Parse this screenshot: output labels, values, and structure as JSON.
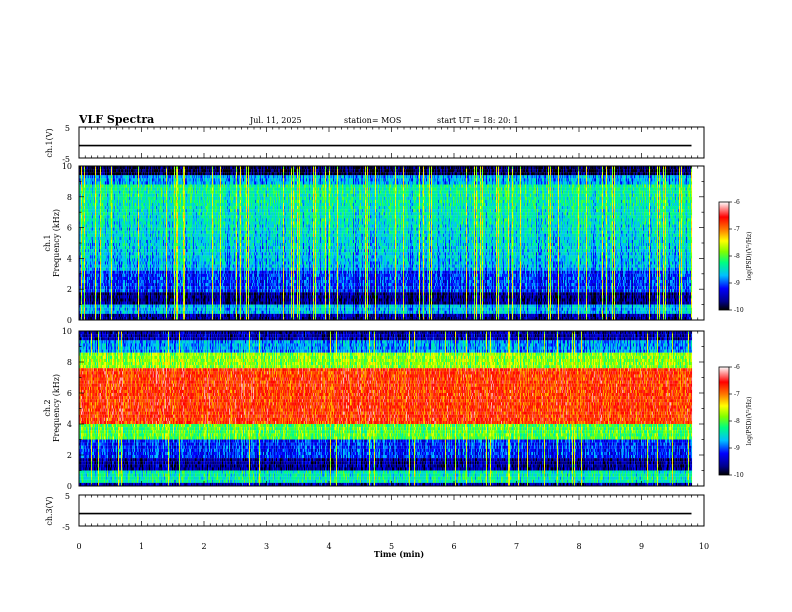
{
  "header": {
    "title": "VLF Spectra",
    "date": "Jul. 11, 2025",
    "station": "station= MOS",
    "start_ut": "start UT =  18: 20: 1"
  },
  "chart_data": [
    {
      "type": "line",
      "panel": "ch1-voltage",
      "ylabel": "ch.1(V)",
      "ylim": [
        -5,
        5
      ],
      "yticks": [
        "5",
        "-5"
      ],
      "xlim": [
        0,
        10
      ],
      "series": [
        {
          "x": [
            0,
            9.8
          ],
          "values": [
            -1,
            -1
          ]
        }
      ]
    },
    {
      "type": "heatmap",
      "panel": "ch1-spectrogram",
      "ylabel_line1": "ch.1",
      "ylabel_line2": "Frequency (kHz)",
      "ylim": [
        0,
        10
      ],
      "yticks": [
        "0",
        "2",
        "4",
        "6",
        "8",
        "10"
      ],
      "xlim": [
        0,
        10
      ],
      "data_end_min": 9.8,
      "colorbar": {
        "label": "log(PSD)(V²/Hz)",
        "range": [
          -10,
          -6
        ],
        "ticks": [
          "-6",
          "-7",
          "-8",
          "-9",
          "-10"
        ]
      }
    },
    {
      "type": "heatmap",
      "panel": "ch2-spectrogram",
      "ylabel_line1": "ch.2",
      "ylabel_line2": "Frequency (kHz)",
      "ylim": [
        0,
        10
      ],
      "yticks": [
        "0",
        "2",
        "4",
        "6",
        "8",
        "10"
      ],
      "xlim": [
        0,
        10
      ],
      "data_end_min": 9.8,
      "colorbar": {
        "label": "log(PSD)(V²/Hz)",
        "range": [
          -10,
          -6
        ],
        "ticks": [
          "-6",
          "-7",
          "-8",
          "-9",
          "-10"
        ]
      }
    },
    {
      "type": "line",
      "panel": "ch3-voltage",
      "ylabel": "ch.3(V)",
      "ylim": [
        -5,
        5
      ],
      "yticks": [
        "5",
        "-5"
      ],
      "xlim": [
        0,
        10
      ],
      "series": [
        {
          "x": [
            0,
            9.8
          ],
          "values": [
            -1,
            -1
          ]
        }
      ]
    }
  ],
  "x_axis": {
    "label": "Time (min)",
    "ticks": [
      "0",
      "1",
      "2",
      "3",
      "4",
      "5",
      "6",
      "7",
      "8",
      "9",
      "10"
    ]
  },
  "colors": {
    "axis": "#000000",
    "colormap": [
      "#000000",
      "#00008b",
      "#0000ff",
      "#00c0ff",
      "#00ff80",
      "#80ff00",
      "#ffff00",
      "#ff8000",
      "#ff0000",
      "#ffffff"
    ]
  }
}
